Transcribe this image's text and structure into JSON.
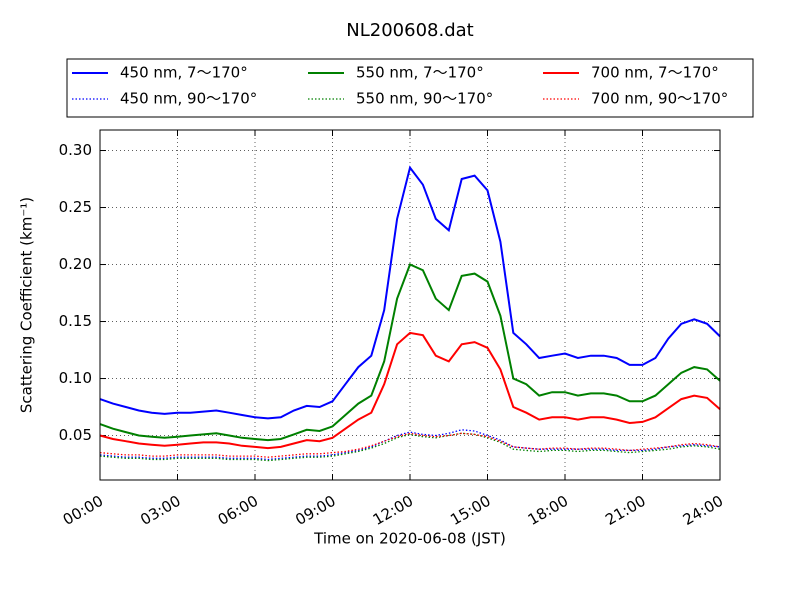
{
  "chart_data": {
    "type": "line",
    "title": "NL200608.dat",
    "x_label": "Time on 2020-06-08 (JST)",
    "y_label": "Scattering Coefficient (km⁻¹)",
    "x": [
      0,
      0.5,
      1,
      1.5,
      2,
      2.5,
      3,
      3.5,
      4,
      4.5,
      5,
      5.5,
      6,
      6.5,
      7,
      7.5,
      8,
      8.5,
      9,
      9.5,
      10,
      10.5,
      11,
      11.5,
      12,
      12.5,
      13,
      13.5,
      14,
      14.5,
      15,
      15.5,
      16,
      16.5,
      17,
      17.5,
      18,
      18.5,
      19,
      19.5,
      20,
      20.5,
      21,
      21.5,
      22,
      22.5,
      23,
      23.5,
      24
    ],
    "xlim": [
      0,
      24
    ],
    "xticks": [
      {
        "value": 0,
        "label": "00:00"
      },
      {
        "value": 3,
        "label": "03:00"
      },
      {
        "value": 6,
        "label": "06:00"
      },
      {
        "value": 9,
        "label": "09:00"
      },
      {
        "value": 12,
        "label": "12:00"
      },
      {
        "value": 15,
        "label": "15:00"
      },
      {
        "value": 18,
        "label": "18:00"
      },
      {
        "value": 21,
        "label": "21:00"
      },
      {
        "value": 24,
        "label": "24:00"
      }
    ],
    "ylim": [
      0.011,
      0.318
    ],
    "yticks": [
      0.05,
      {
        "value": 0.1,
        "label": "0.10"
      },
      0.15,
      {
        "value": 0.2,
        "label": "0.20"
      },
      0.25,
      {
        "value": 0.3,
        "label": "0.30"
      }
    ],
    "grid": true,
    "legend": "top",
    "series": [
      {
        "name": "450 nm, 7～170°",
        "color": "#0000ff",
        "style": "solid",
        "values": [
          0.082,
          0.078,
          0.075,
          0.072,
          0.07,
          0.069,
          0.07,
          0.07,
          0.071,
          0.072,
          0.07,
          0.068,
          0.066,
          0.065,
          0.066,
          0.072,
          0.076,
          0.075,
          0.08,
          0.095,
          0.11,
          0.12,
          0.16,
          0.24,
          0.285,
          0.27,
          0.24,
          0.23,
          0.275,
          0.278,
          0.265,
          0.22,
          0.14,
          0.13,
          0.118,
          0.12,
          0.122,
          0.118,
          0.12,
          0.12,
          0.118,
          0.112,
          0.112,
          0.118,
          0.135,
          0.148,
          0.152,
          0.148,
          0.137
        ]
      },
      {
        "name": "550 nm, 7～170°",
        "color": "#008000",
        "style": "solid",
        "values": [
          0.06,
          0.056,
          0.053,
          0.05,
          0.049,
          0.048,
          0.049,
          0.05,
          0.051,
          0.052,
          0.05,
          0.048,
          0.047,
          0.046,
          0.047,
          0.051,
          0.055,
          0.054,
          0.058,
          0.068,
          0.078,
          0.085,
          0.115,
          0.17,
          0.2,
          0.195,
          0.17,
          0.16,
          0.19,
          0.192,
          0.185,
          0.155,
          0.1,
          0.095,
          0.085,
          0.088,
          0.088,
          0.085,
          0.087,
          0.087,
          0.085,
          0.08,
          0.08,
          0.085,
          0.095,
          0.105,
          0.11,
          0.108,
          0.098
        ]
      },
      {
        "name": "700 nm, 7～170°",
        "color": "#ff0000",
        "style": "solid",
        "values": [
          0.05,
          0.047,
          0.045,
          0.043,
          0.042,
          0.041,
          0.042,
          0.043,
          0.044,
          0.044,
          0.043,
          0.041,
          0.04,
          0.039,
          0.04,
          0.043,
          0.046,
          0.045,
          0.048,
          0.056,
          0.064,
          0.07,
          0.095,
          0.13,
          0.14,
          0.138,
          0.12,
          0.115,
          0.13,
          0.132,
          0.127,
          0.108,
          0.075,
          0.07,
          0.064,
          0.066,
          0.066,
          0.064,
          0.066,
          0.066,
          0.064,
          0.061,
          0.062,
          0.066,
          0.074,
          0.082,
          0.085,
          0.083,
          0.073
        ]
      },
      {
        "name": "450 nm, 90～170°",
        "color": "#0000ff",
        "style": "dotted",
        "values": [
          0.033,
          0.032,
          0.031,
          0.031,
          0.03,
          0.03,
          0.031,
          0.031,
          0.031,
          0.031,
          0.03,
          0.03,
          0.03,
          0.029,
          0.03,
          0.031,
          0.032,
          0.032,
          0.033,
          0.035,
          0.037,
          0.04,
          0.045,
          0.05,
          0.053,
          0.051,
          0.05,
          0.052,
          0.055,
          0.054,
          0.05,
          0.046,
          0.04,
          0.039,
          0.038,
          0.038,
          0.038,
          0.038,
          0.038,
          0.038,
          0.037,
          0.037,
          0.037,
          0.038,
          0.04,
          0.041,
          0.042,
          0.041,
          0.04
        ]
      },
      {
        "name": "550 nm, 90～170°",
        "color": "#008000",
        "style": "dotted",
        "values": [
          0.032,
          0.031,
          0.03,
          0.03,
          0.029,
          0.029,
          0.03,
          0.03,
          0.03,
          0.03,
          0.029,
          0.029,
          0.029,
          0.028,
          0.029,
          0.03,
          0.031,
          0.031,
          0.032,
          0.034,
          0.036,
          0.039,
          0.043,
          0.048,
          0.051,
          0.049,
          0.048,
          0.05,
          0.052,
          0.051,
          0.048,
          0.044,
          0.038,
          0.037,
          0.036,
          0.037,
          0.037,
          0.036,
          0.037,
          0.037,
          0.036,
          0.035,
          0.036,
          0.037,
          0.038,
          0.04,
          0.041,
          0.04,
          0.038
        ]
      },
      {
        "name": "700 nm, 90～170°",
        "color": "#ff0000",
        "style": "dotted",
        "values": [
          0.035,
          0.034,
          0.033,
          0.033,
          0.032,
          0.032,
          0.033,
          0.033,
          0.033,
          0.033,
          0.032,
          0.032,
          0.032,
          0.031,
          0.032,
          0.033,
          0.034,
          0.034,
          0.035,
          0.036,
          0.038,
          0.041,
          0.045,
          0.049,
          0.052,
          0.05,
          0.049,
          0.05,
          0.052,
          0.051,
          0.049,
          0.045,
          0.04,
          0.039,
          0.038,
          0.039,
          0.039,
          0.038,
          0.039,
          0.039,
          0.038,
          0.037,
          0.038,
          0.039,
          0.04,
          0.042,
          0.043,
          0.042,
          0.04
        ]
      }
    ]
  }
}
